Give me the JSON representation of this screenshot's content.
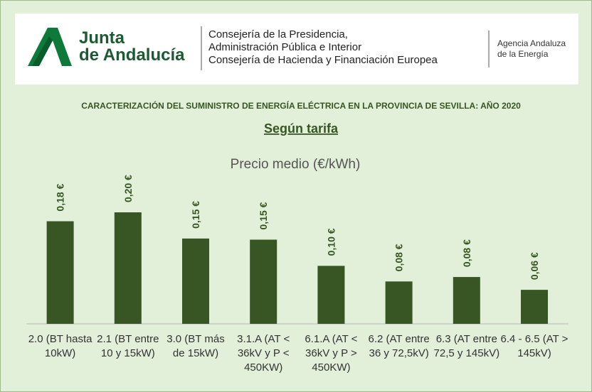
{
  "header": {
    "logo_line1": "Junta",
    "logo_line2": "de Andalucía",
    "department_lines": [
      "Consejería de la Presidencia,",
      "Administración Pública e Interior",
      "Consejería de Hacienda y Financiación Europea"
    ],
    "agency_lines": [
      "Agencia Andaluza",
      "de la Energía"
    ]
  },
  "chart_data": {
    "type": "bar",
    "title": "CARACTERIZACIÓN DEL SUMINISTRO DE ENERGÍA ELÉCTRICA EN LA PROVINCIA DE SEVILLA:  AÑO 2020",
    "subtitle": "Según tarifa",
    "chart_title": "Precio medio (€/kWh)",
    "categories": [
      "2.0 (BT hasta 10kW)",
      "2.1 (BT entre 10 y 15kW)",
      "3.0 (BT más de 15kW)",
      "3.1.A (AT < 36kV y P < 450KW)",
      "6.1.A (AT < 36kV y P > 450KW)",
      "6.2 (AT entre 36 y 72,5kV)",
      "6.3  (AT entre 72,5 y 145kV)",
      "6.4 - 6.5  (AT > 145kV)"
    ],
    "values": [
      0.184,
      0.2,
      0.153,
      0.151,
      0.104,
      0.076,
      0.084,
      0.061
    ],
    "value_labels": [
      "0,18 €",
      "0,20 €",
      "0,15 €",
      "0,15 €",
      "0,10 €",
      "0,08 €",
      "0,08 €",
      "0,06 €"
    ],
    "color": "#375623"
  }
}
